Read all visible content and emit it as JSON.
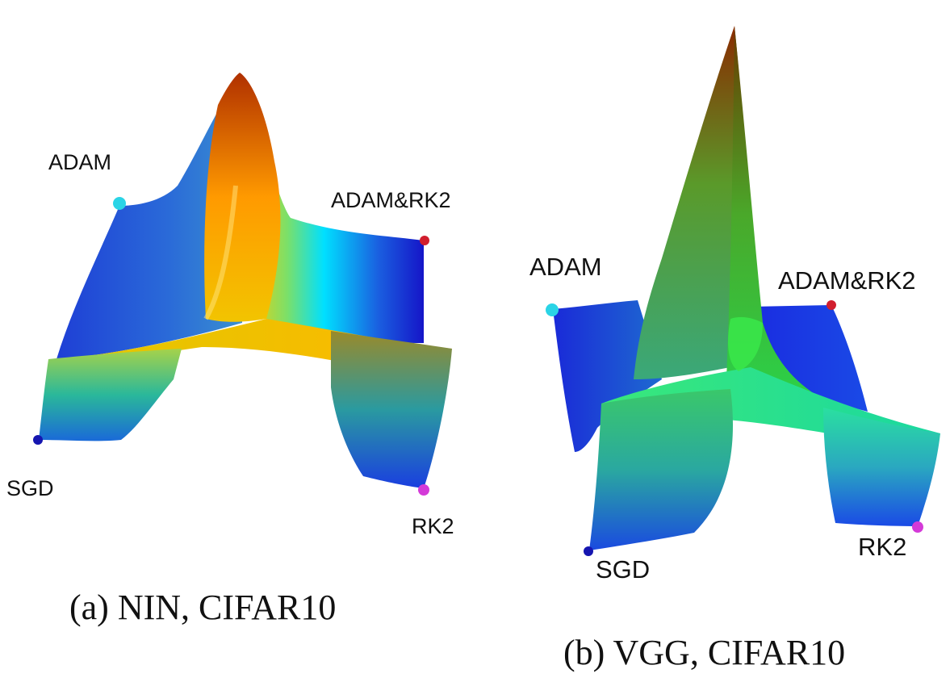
{
  "panels": [
    {
      "caption": "(a) NIN, CIFAR10",
      "markers": [
        {
          "label": "ADAM",
          "color": "#2ad4e6"
        },
        {
          "label": "ADAM&RK2",
          "color": "#d11e2e"
        },
        {
          "label": "SGD",
          "color": "#1515b0"
        },
        {
          "label": "RK2",
          "color": "#d43ad8"
        }
      ]
    },
    {
      "caption": "(b) VGG, CIFAR10",
      "markers": [
        {
          "label": "ADAM",
          "color": "#2ad4e6"
        },
        {
          "label": "ADAM&RK2",
          "color": "#d11e2e"
        },
        {
          "label": "SGD",
          "color": "#1515b0"
        },
        {
          "label": "RK2",
          "color": "#d43ad8"
        }
      ]
    }
  ],
  "colormap": [
    "#1a1ad6",
    "#00e5ff",
    "#00ff66",
    "#ffd400",
    "#ff6a00",
    "#a01a00"
  ]
}
